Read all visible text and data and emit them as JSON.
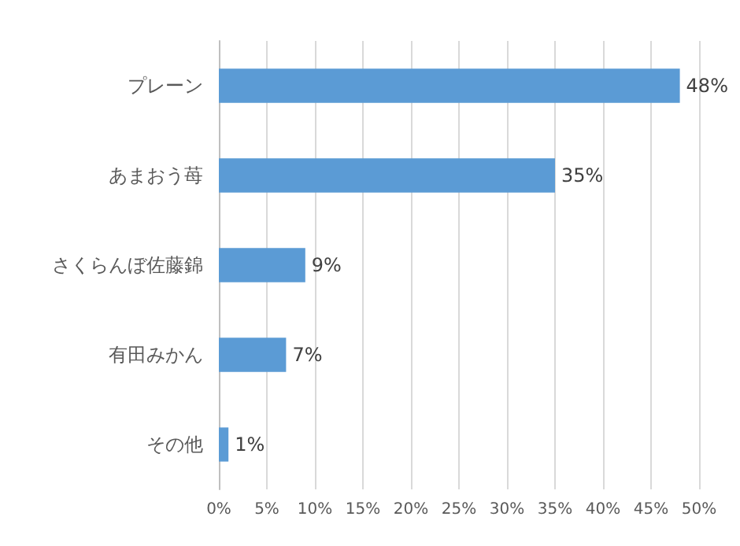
{
  "chart_data": {
    "type": "bar",
    "orientation": "horizontal",
    "categories": [
      "プレーン",
      "あまおう苺",
      "さくらんぼ佐藤錦",
      "有田みかん",
      "その他"
    ],
    "values": [
      48,
      35,
      9,
      7,
      1
    ],
    "value_labels": [
      "48%",
      "35%",
      "9%",
      "7%",
      "1%"
    ],
    "color": "#5b9bd5",
    "xlim": [
      0,
      50
    ],
    "xticks": [
      {
        "value": 0,
        "label": "0%"
      },
      {
        "value": 5,
        "label": "5%"
      },
      {
        "value": 10,
        "label": "10%"
      },
      {
        "value": 15,
        "label": "15%"
      },
      {
        "value": 20,
        "label": "20%"
      },
      {
        "value": 25,
        "label": "25%"
      },
      {
        "value": 30,
        "label": "30%"
      },
      {
        "value": 35,
        "label": "35%"
      },
      {
        "value": 40,
        "label": "40%"
      },
      {
        "value": 45,
        "label": "45%"
      },
      {
        "value": 50,
        "label": "50%"
      }
    ],
    "grid": "x"
  }
}
